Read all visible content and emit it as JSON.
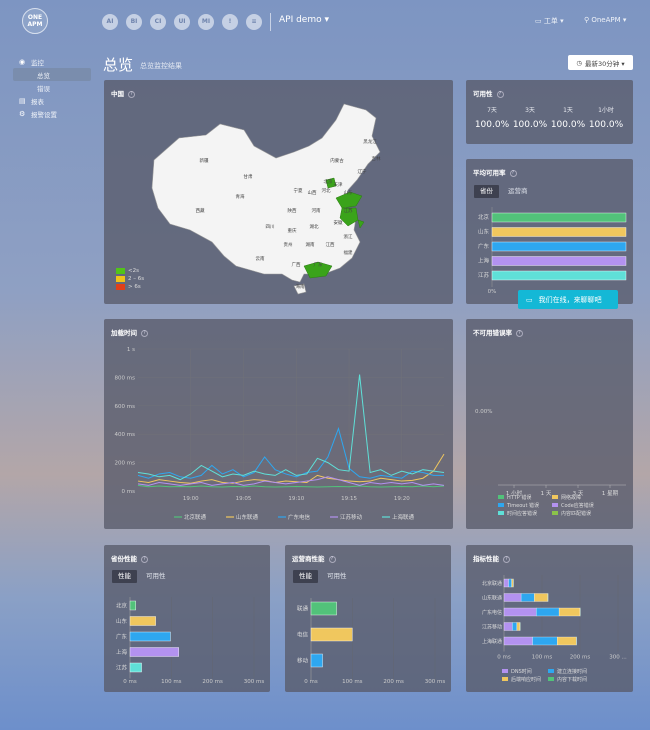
{
  "header": {
    "logo_line1": "ONE",
    "logo_line2": "APM",
    "nav_icons": [
      {
        "label": "AI",
        "icon": "ai-icon"
      },
      {
        "label": "BI",
        "icon": "bi-icon"
      },
      {
        "label": "CI",
        "icon": "ci-icon"
      },
      {
        "label": "UI",
        "icon": "ui-icon"
      },
      {
        "label": "MI",
        "icon": "mi-icon"
      },
      {
        "label": "!",
        "icon": "alert-icon"
      },
      {
        "label": "≡",
        "icon": "table-icon"
      }
    ],
    "app_name": "API demo ▾",
    "workspace": "工单 ▾",
    "user": "OneAPM ▾"
  },
  "sidebar": {
    "items": [
      {
        "label": "监控",
        "icon": "◉",
        "sub": false,
        "active": false
      },
      {
        "label": "总览",
        "icon": "",
        "sub": true,
        "active": true
      },
      {
        "label": "错误",
        "icon": "",
        "sub": true,
        "active": false
      },
      {
        "label": "报表",
        "icon": "▤",
        "sub": false,
        "active": false
      },
      {
        "label": "报警设置",
        "icon": "⚙",
        "sub": false,
        "active": false
      }
    ]
  },
  "page": {
    "title": "总览",
    "subtitle": "总览监控结果",
    "time_button": "最新30分钟 ▾"
  },
  "map": {
    "title": "中国",
    "legend": [
      {
        "label": "<2s",
        "color": "#52c41a"
      },
      {
        "label": "2 – 6s",
        "color": "#f0c419"
      },
      {
        "label": "> 6s",
        "color": "#e0401a"
      }
    ],
    "labels": [
      "黑龙江",
      "吉林",
      "辽宁",
      "内蒙古",
      "北京",
      "天津",
      "河北",
      "山西",
      "宁夏",
      "甘肃",
      "新疆",
      "西藏",
      "青海",
      "四川",
      "陕西",
      "河南",
      "山东",
      "江苏",
      "安徽",
      "湖北",
      "重庆",
      "贵州",
      "湖南",
      "江西",
      "浙江",
      "云南",
      "广西",
      "广东",
      "福建",
      "海南"
    ]
  },
  "availability": {
    "title": "可用性",
    "periods": [
      "7天",
      "3天",
      "1天",
      "1小时"
    ],
    "values": [
      "100.0%",
      "100.0%",
      "100.0%",
      "100.0%"
    ]
  },
  "avg_availability": {
    "title": "平均可用率",
    "tabs": [
      "省份",
      "运营商"
    ],
    "chart_data": {
      "type": "bar",
      "orientation": "horizontal",
      "categories": [
        "北京",
        "山东",
        "广东",
        "上海",
        "江苏"
      ],
      "values": [
        100,
        100,
        100,
        100,
        100
      ],
      "colors": [
        "#52c27a",
        "#f0c75e",
        "#2ea7f0",
        "#b392f0",
        "#5fe0d8"
      ],
      "xtick": "0%"
    }
  },
  "chat": {
    "label": "我们在线，来聊聊吧"
  },
  "load_time": {
    "title": "加载时间",
    "chart_data": {
      "type": "line",
      "x": [
        "18:55",
        "18:56",
        "18:57",
        "18:58",
        "18:59",
        "19:00",
        "19:01",
        "19:02",
        "19:03",
        "19:04",
        "19:05",
        "19:06",
        "19:07",
        "19:08",
        "19:09",
        "19:10",
        "19:11",
        "19:12",
        "19:13",
        "19:14",
        "19:15",
        "19:16",
        "19:17",
        "19:18",
        "19:19",
        "19:20",
        "19:21",
        "19:22",
        "19:23",
        "19:24"
      ],
      "xticks": [
        "19:00",
        "19:05",
        "19:10",
        "19:15",
        "19:20"
      ],
      "yticks": [
        "0 ms",
        "200 ms",
        "400 ms",
        "600 ms",
        "800 ms",
        "1 s"
      ],
      "ylim": [
        0,
        1000
      ],
      "series": [
        {
          "name": "北京联通",
          "color": "#52c27a",
          "values": [
            40,
            30,
            35,
            30,
            32,
            30,
            35,
            30,
            28,
            32,
            30,
            35,
            30,
            28,
            30,
            32,
            30,
            28,
            30,
            32,
            30,
            35,
            30,
            28,
            30,
            32,
            30,
            35,
            30,
            35
          ]
        },
        {
          "name": "山东联通",
          "color": "#f0c75e",
          "values": [
            70,
            60,
            80,
            70,
            60,
            55,
            70,
            80,
            60,
            55,
            70,
            80,
            75,
            60,
            70,
            65,
            60,
            110,
            90,
            80,
            70,
            65,
            70,
            90,
            80,
            70,
            75,
            90,
            140,
            260
          ]
        },
        {
          "name": "广东电信",
          "color": "#2ea7f0",
          "values": [
            110,
            90,
            120,
            130,
            100,
            90,
            110,
            180,
            120,
            150,
            100,
            130,
            240,
            150,
            120,
            100,
            130,
            140,
            240,
            440,
            160,
            100,
            90,
            110,
            100,
            90,
            140,
            130,
            110,
            110
          ]
        },
        {
          "name": "江苏移动",
          "color": "#b392f0",
          "values": [
            50,
            40,
            60,
            50,
            40,
            50,
            60,
            40,
            50,
            60,
            40,
            50,
            70,
            60,
            50,
            60,
            70,
            80,
            100,
            80,
            60,
            40,
            60,
            50,
            60,
            50,
            60,
            40,
            50,
            40
          ]
        },
        {
          "name": "上海联通",
          "color": "#5fe0d8",
          "values": [
            130,
            120,
            100,
            110,
            80,
            120,
            180,
            140,
            100,
            120,
            110,
            140,
            120,
            110,
            150,
            110,
            120,
            230,
            200,
            150,
            140,
            820,
            130,
            150,
            110,
            140,
            120,
            150,
            140,
            130
          ]
        }
      ]
    }
  },
  "error_rate": {
    "title": "不可用错误率",
    "chart_data": {
      "type": "bar",
      "categories": [
        "1 小时",
        "1 天",
        "3 天",
        "1 星期"
      ],
      "values": [
        0,
        0,
        0,
        0
      ],
      "ytick": "0.00%"
    },
    "legend": [
      {
        "label": "HTTP 错误",
        "color": "#52c27a"
      },
      {
        "label": "网络故障",
        "color": "#f0c75e"
      },
      {
        "label": "Timeout 错误",
        "color": "#2ea7f0"
      },
      {
        "label": "Code应答错误",
        "color": "#b392f0"
      },
      {
        "label": "时间应答错误",
        "color": "#5fe0d8"
      },
      {
        "label": "内容匹配错误",
        "color": "#8bc34a"
      }
    ]
  },
  "province_perf": {
    "title": "省份性能",
    "tabs": [
      "性能",
      "可用性"
    ],
    "chart_data": {
      "type": "bar",
      "orientation": "horizontal",
      "categories": [
        "北京",
        "山东",
        "广东",
        "上海",
        "江苏"
      ],
      "values": [
        14,
        62,
        98,
        118,
        28
      ],
      "colors": [
        "#52c27a",
        "#f0c75e",
        "#2ea7f0",
        "#b392f0",
        "#5fe0d8"
      ],
      "xticks": [
        "0 ms",
        "100 ms",
        "200 ms",
        "300 ms"
      ],
      "xlim": [
        0,
        300
      ]
    }
  },
  "isp_perf": {
    "title": "运营商性能",
    "tabs": [
      "性能",
      "可用性"
    ],
    "chart_data": {
      "type": "bar",
      "orientation": "horizontal",
      "categories": [
        "联通",
        "电信",
        "移动"
      ],
      "values": [
        62,
        100,
        28
      ],
      "colors": [
        "#52c27a",
        "#f0c75e",
        "#2ea7f0"
      ],
      "xticks": [
        "0 ms",
        "100 ms",
        "200 ms",
        "300 ms"
      ],
      "xlim": [
        0,
        300
      ]
    }
  },
  "metric_perf": {
    "title": "指标性能",
    "chart_data": {
      "type": "bar",
      "orientation": "horizontal",
      "stacked": true,
      "categories": [
        "北京联通",
        "山东联通",
        "广东电信",
        "江苏移动",
        "上海联通"
      ],
      "xticks": [
        "0 ms",
        "100 ms",
        "200 ms",
        "300 ..."
      ],
      "xlim": [
        0,
        300
      ],
      "series": [
        {
          "name": "DNS时间",
          "color": "#b392f0",
          "values": [
            12,
            45,
            85,
            22,
            75
          ]
        },
        {
          "name": "建立连接时间",
          "color": "#2ea7f0",
          "values": [
            8,
            35,
            60,
            12,
            65
          ]
        },
        {
          "name": "后端响应时间",
          "color": "#f0c75e",
          "values": [
            4,
            35,
            55,
            8,
            50
          ]
        },
        {
          "name": "内容下载时间",
          "color": "#52c27a",
          "values": [
            1,
            1,
            1,
            1,
            1
          ]
        }
      ]
    }
  }
}
